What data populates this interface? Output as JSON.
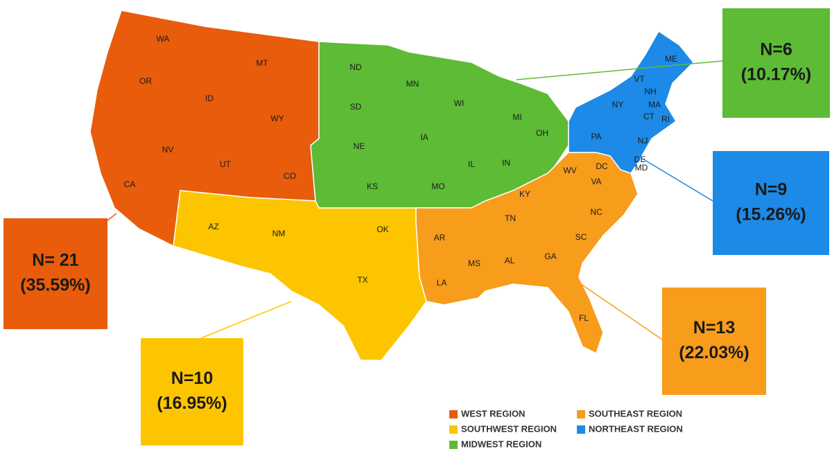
{
  "regions": [
    {
      "name": "WEST REGION",
      "color": "#e85c0c",
      "n_label": "N= 21",
      "pct_label": "(35.59%)",
      "states": [
        "WA",
        "OR",
        "MT",
        "ID",
        "WY",
        "NV",
        "UT",
        "CO",
        "CA"
      ]
    },
    {
      "name": "SOUTHWEST REGION",
      "color": "#fdc500",
      "n_label": "N=10",
      "pct_label": "(16.95%)",
      "states": [
        "AZ",
        "NM",
        "OK",
        "TX"
      ]
    },
    {
      "name": "MIDWEST REGION",
      "color": "#5dbb36",
      "n_label": "N=6",
      "pct_label": "(10.17%)",
      "states": [
        "ND",
        "MN",
        "SD",
        "WI",
        "MI",
        "NE",
        "IA",
        "IL",
        "IN",
        "OH",
        "KS",
        "MO"
      ]
    },
    {
      "name": "SOUTHEAST REGION",
      "color": "#f89c1c",
      "n_label": "N=13",
      "pct_label": "(22.03%)",
      "states": [
        "WV",
        "DC",
        "VA",
        "KY",
        "NC",
        "TN",
        "AR",
        "SC",
        "MS",
        "AL",
        "GA",
        "LA",
        "FL"
      ]
    },
    {
      "name": "NORTHEAST REGION",
      "color": "#1c8ae6",
      "n_label": "N=9",
      "pct_label": "(15.26%)",
      "states": [
        "ME",
        "VT",
        "NH",
        "NY",
        "MA",
        "CT",
        "RI",
        "PA",
        "NJ",
        "DE",
        "MD"
      ]
    }
  ]
}
